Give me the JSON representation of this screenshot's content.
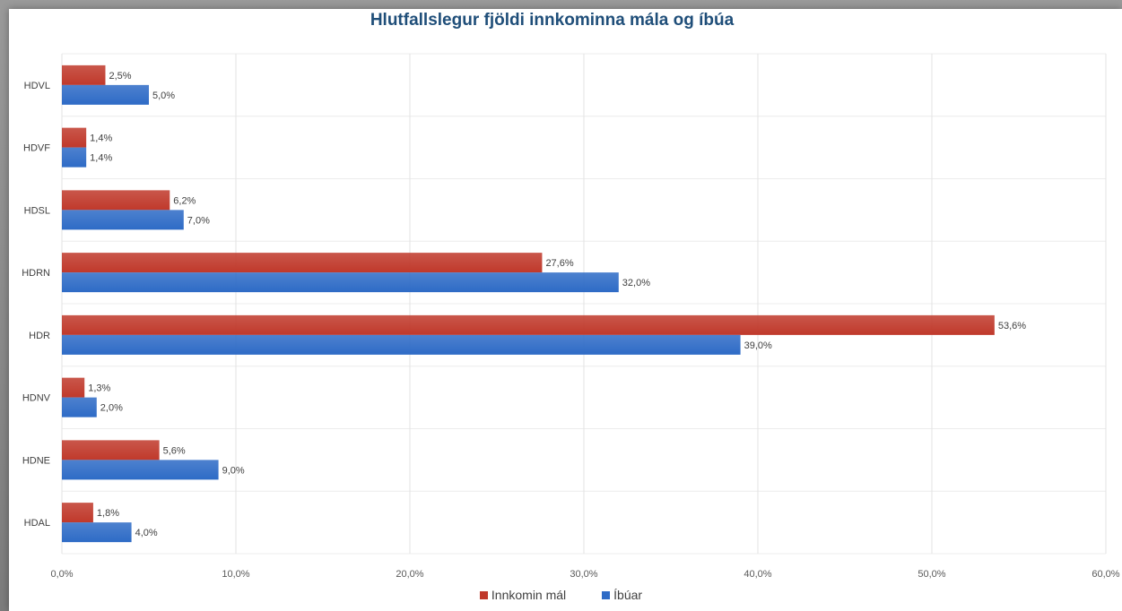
{
  "chart_data": {
    "type": "bar",
    "orientation": "horizontal",
    "title": "Hlutfallslegur fjöldi innkominna mála og íbúa",
    "categories": [
      "HDVL",
      "HDVF",
      "HDSL",
      "HDRN",
      "HDR",
      "HDNV",
      "HDNE",
      "HDAL"
    ],
    "series": [
      {
        "name": "Innkomin mál",
        "color": "#c0392b",
        "values": [
          2.5,
          1.4,
          6.2,
          27.6,
          53.6,
          1.3,
          5.6,
          1.8
        ],
        "labels": [
          "2,5%",
          "1,4%",
          "6,2%",
          "27,6%",
          "53,6%",
          "1,3%",
          "5,6%",
          "1,8%"
        ]
      },
      {
        "name": "Íbúar",
        "color": "#2e6bc6",
        "values": [
          5.0,
          1.4,
          7.0,
          32.0,
          39.0,
          2.0,
          9.0,
          4.0
        ],
        "labels": [
          "5,0%",
          "1,4%",
          "7,0%",
          "32,0%",
          "39,0%",
          "2,0%",
          "9,0%",
          "4,0%"
        ]
      }
    ],
    "xlim": [
      0,
      60
    ],
    "xticks": [
      "0,0%",
      "10,0%",
      "20,0%",
      "30,0%",
      "40,0%",
      "50,0%",
      "60,0%"
    ],
    "grid": true,
    "legend_position": "bottom"
  }
}
